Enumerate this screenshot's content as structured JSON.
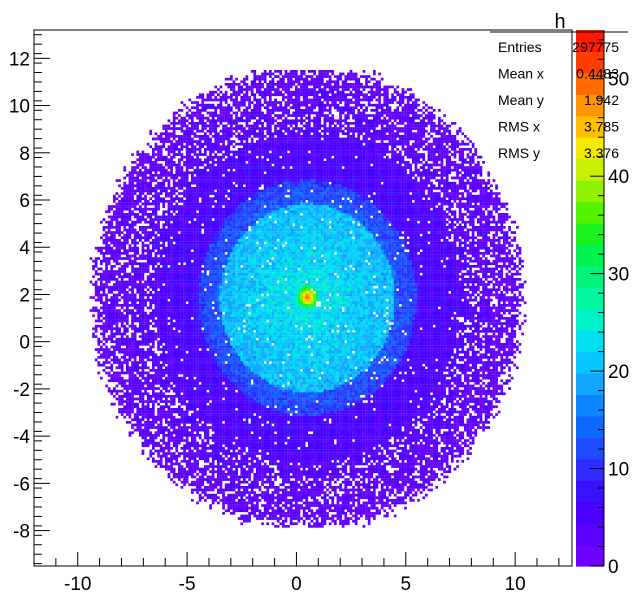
{
  "chart_data": {
    "type": "heatmap",
    "title": "h",
    "xlabel": "",
    "ylabel": "",
    "xlim": [
      -12,
      12.6
    ],
    "ylim": [
      -9.5,
      13.2
    ],
    "zlim": [
      0,
      55
    ],
    "x_ticks": [
      -10,
      -5,
      0,
      5,
      10
    ],
    "x_tick_labels": [
      "-10",
      "-5",
      "0",
      "5",
      "10"
    ],
    "y_ticks": [
      -8,
      -6,
      -4,
      -2,
      0,
      2,
      4,
      6,
      8,
      10,
      12
    ],
    "y_tick_labels": [
      "-8",
      "-6",
      "-4",
      "-2",
      "0",
      "2",
      "4",
      "6",
      "8",
      "10",
      "12"
    ],
    "palette_ticks": [
      0,
      10,
      20,
      30,
      40,
      50
    ],
    "palette_tick_labels": [
      "0",
      "10",
      "20",
      "30",
      "40",
      "50"
    ],
    "distribution": {
      "center": [
        0.45,
        1.9
      ],
      "regions": [
        {
          "name": "core",
          "radius": 4.0,
          "level": 24
        },
        {
          "name": "ring",
          "radius": 5.0,
          "level": 13
        },
        {
          "name": "halo",
          "radius": 9.8,
          "level": 6
        }
      ],
      "peak": {
        "x": 0.45,
        "y": 1.95,
        "value": 50
      }
    },
    "stats": {
      "title": "h",
      "rows": [
        {
          "label": "Entries",
          "value": "297775"
        },
        {
          "label": "Mean x",
          "value": "0.4483"
        },
        {
          "label": "Mean y",
          "value": "1.942"
        },
        {
          "label": "RMS x",
          "value": "3.785"
        },
        {
          "label": "RMS y",
          "value": "3.376"
        }
      ]
    },
    "grid": false,
    "legend": "top-right stats box"
  },
  "colors": {
    "palette": [
      "#6d00ff",
      "#5a00ff",
      "#4900ff",
      "#3a10ff",
      "#2f2cff",
      "#1f4bff",
      "#1068ff",
      "#0d86ff",
      "#12a6ff",
      "#08c6ff",
      "#00e0f0",
      "#00f2c8",
      "#00f7a0",
      "#00f47a",
      "#00f24f",
      "#1af21f",
      "#55f200",
      "#8ff200",
      "#c8f000",
      "#f2ea00",
      "#ffbf00",
      "#ff9500",
      "#ff6b00",
      "#ff3d00",
      "#ff1a00"
    ],
    "frame": "#000000",
    "background": "#ffffff"
  }
}
